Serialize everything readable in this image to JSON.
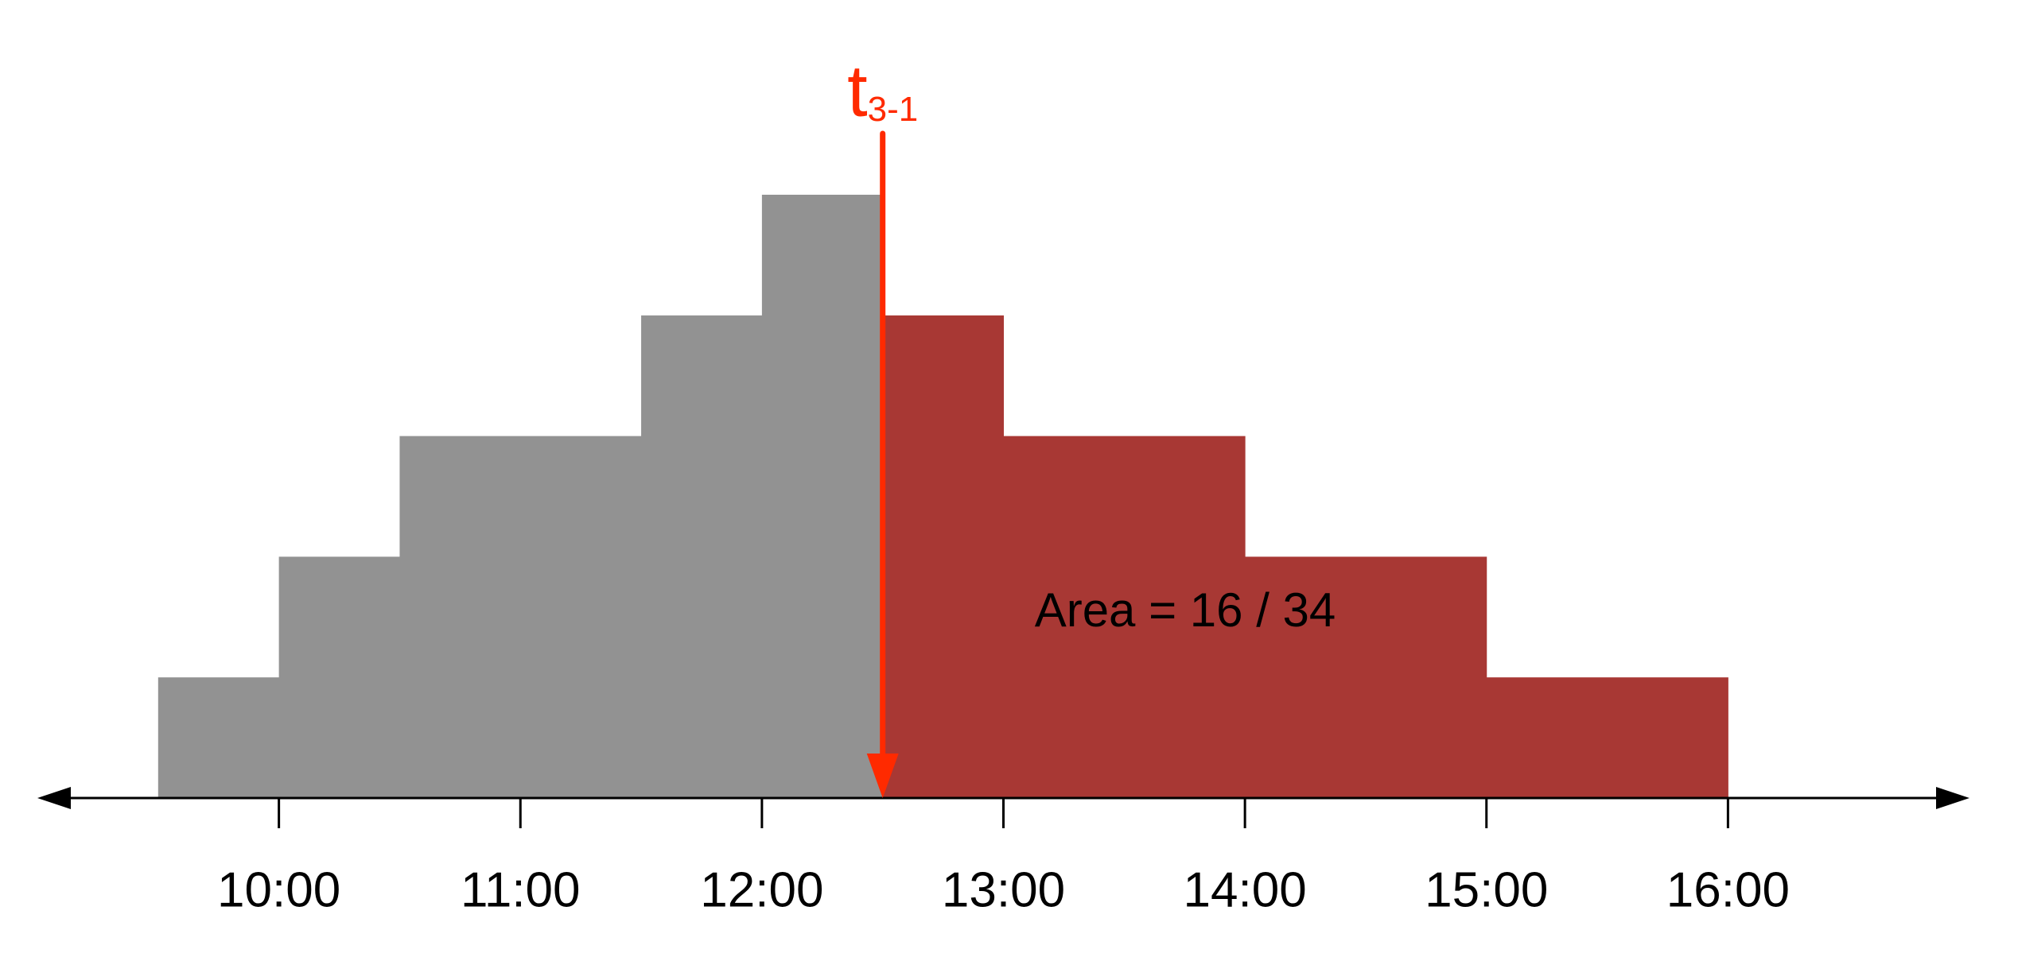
{
  "chart_data": {
    "type": "histogram",
    "bins": [
      9.5,
      10,
      10.5,
      11.5,
      12,
      12.5,
      13,
      14,
      15,
      16
    ],
    "counts": [
      1,
      2,
      3,
      4,
      5,
      4,
      3,
      2,
      1
    ],
    "colors": [
      "#929292",
      "#929292",
      "#929292",
      "#929292",
      "#929292",
      "#a83834",
      "#a83834",
      "#a83834",
      "#a83834"
    ],
    "xlim": [
      9,
      17
    ],
    "ylim": [
      0,
      5
    ],
    "xticks": [
      {
        "value": 10,
        "label": "10:00"
      },
      {
        "value": 11,
        "label": "11:00"
      },
      {
        "value": 12,
        "label": "12:00"
      },
      {
        "value": 13,
        "label": "13:00"
      },
      {
        "value": 14,
        "label": "14:00"
      },
      {
        "value": 15,
        "label": "15:00"
      },
      {
        "value": 16,
        "label": "16:00"
      }
    ],
    "marker": {
      "x": 12.5,
      "label": "t",
      "subscript": "3-1",
      "color": "#ff2a00"
    },
    "annotation": "Area = 16 / 34"
  }
}
